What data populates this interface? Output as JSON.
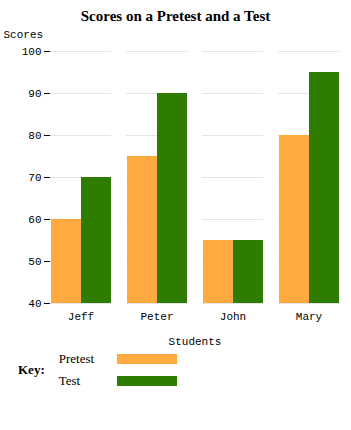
{
  "chart_data": {
    "type": "bar",
    "title": "Scores on a Pretest and a Test",
    "x_label": "Students",
    "y_label": "Scores",
    "categories": [
      "Jeff",
      "Peter",
      "John",
      "Mary"
    ],
    "series": [
      {
        "name": "Pretest",
        "color": "#FFA940",
        "values": [
          60,
          75,
          55,
          80
        ]
      },
      {
        "name": "Test",
        "color": "#2E7D00",
        "values": [
          70,
          90,
          55,
          95
        ]
      }
    ],
    "ylim": [
      40,
      100
    ],
    "yticks": [
      40,
      50,
      60,
      70,
      80,
      90,
      100
    ],
    "grid": true,
    "legend": "bottom",
    "legend_title": "Key:"
  }
}
